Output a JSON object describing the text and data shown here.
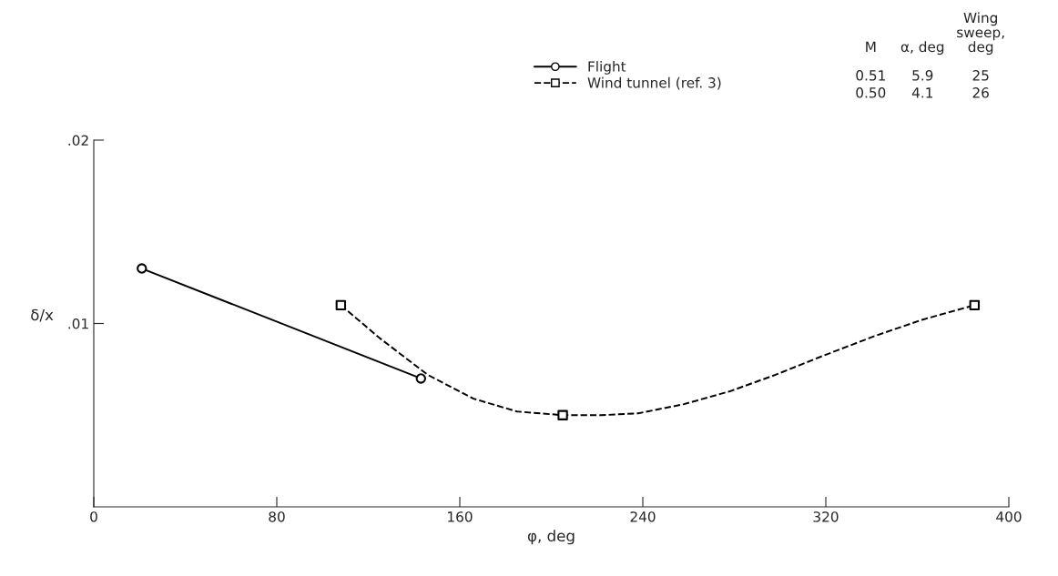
{
  "chart_data": {
    "type": "line",
    "xlabel": "φ, deg",
    "ylabel": "δ/x",
    "series": [
      {
        "name": "Flight",
        "color": "#000000",
        "line_style": "solid",
        "marker": "circle",
        "x": [
          21,
          143
        ],
        "values": [
          0.013,
          0.007
        ]
      },
      {
        "name": "Wind tunnel (ref. 3)",
        "color": "#000000",
        "line_style": "dashed",
        "marker": "none",
        "x": [
          108,
          125,
          146,
          166,
          185,
          205,
          222,
          238,
          258,
          278,
          298,
          318,
          341,
          362,
          385
        ],
        "values": [
          0.011,
          0.0092,
          0.0072,
          0.0059,
          0.0052,
          0.005,
          0.005,
          0.0051,
          0.0056,
          0.0063,
          0.0072,
          0.0082,
          0.0093,
          0.0102,
          0.011
        ]
      },
      {
        "type": "scatter",
        "color": "#000000",
        "marker": "square",
        "x": [
          108,
          205,
          385
        ],
        "values": [
          0.011,
          0.005,
          0.011
        ]
      }
    ],
    "xlim": [
      0,
      400
    ],
    "xticks": [
      0,
      80,
      160,
      240,
      320,
      400
    ],
    "ylim": [
      0,
      0.02
    ],
    "yticks": [
      {
        "value": 0.01,
        "label": ".01"
      },
      {
        "value": 0.02,
        "label": ".02"
      }
    ],
    "grid": false,
    "legend": "top right",
    "annotations": [
      "M",
      "α, deg",
      "Wing\nsweep,\ndeg",
      "0.51",
      "5.9",
      "25",
      "0.50",
      "4.1",
      "26"
    ]
  }
}
